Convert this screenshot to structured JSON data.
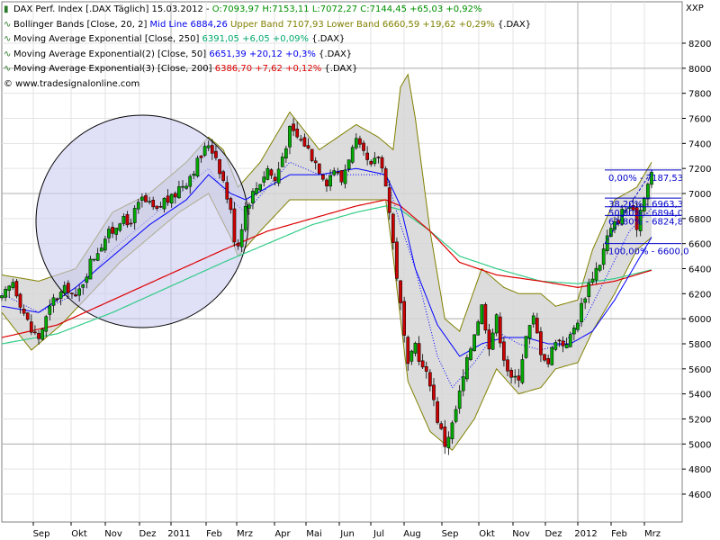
{
  "header": {
    "title": "DAX Perf. Index [.DAX  Täglich] 15.03.2012 -",
    "ohlc": "O:7093,97 H:7153,11 L:7072,27",
    "close": "C:7144,45 +65,03 +0,92%",
    "symbol_code": "XXP"
  },
  "legend": {
    "bollinger_label": "Bollinger Bands [Close, 20, 2]",
    "bollinger_mid": "Mid Line 6884,26",
    "bollinger_bands": "Upper Band 7107,93 Lower Band 6660,59 +19,62 +0,29%",
    "bollinger_suffix": "{.DAX}",
    "ema1_label": "Moving Average Exponential [Close, 250]",
    "ema1_value": "6391,05 +6,05 +0,09%",
    "ema1_suffix": "{.DAX}",
    "ema2_label": "Moving Average Exponential(2) [Close, 50]",
    "ema2_value": "6651,39 +20,12 +0,3%",
    "ema2_suffix": "{.DAX}",
    "ema3_label": "Moving Average Exponential(3) [Close, 200]",
    "ema3_value": "6386,70 +7,62 +0,12%",
    "ema3_suffix": "{.DAX}",
    "copyright": "© www.tradesignalonline.com"
  },
  "colors": {
    "candle_up": "#00aa00",
    "candle_down": "#cc0000",
    "band_fill": "#d6d6d6",
    "band_line": "#808000",
    "mid_line": "#0000ff",
    "ema250": "#33cc88",
    "ema50": "#0000ff",
    "ema200": "#dd0000",
    "circle_fill": "#ccccf2",
    "fib": "#0000cc"
  },
  "chart_data": {
    "type": "candlestick",
    "y_ticks": [
      4600,
      4800,
      5000,
      5200,
      5400,
      5600,
      5800,
      6000,
      6200,
      6400,
      6600,
      6800,
      7000,
      7200,
      7400,
      7600,
      7800,
      8000,
      8200
    ],
    "ylim": [
      4450,
      8400
    ],
    "x_tick_labels": [
      "Sep",
      "Okt",
      "Nov",
      "Dez",
      "2011",
      "Feb",
      "Mrz",
      "Apr",
      "Mai",
      "Jun",
      "Jul",
      "Aug",
      "Sep",
      "Okt",
      "Nov",
      "Dez",
      "2012",
      "Feb",
      "Mrz"
    ],
    "close_path": [
      [
        0,
        6150
      ],
      [
        3,
        6300
      ],
      [
        6,
        6050
      ],
      [
        8,
        5900
      ],
      [
        10,
        5850
      ],
      [
        12,
        6000
      ],
      [
        14,
        6150
      ],
      [
        16,
        6200
      ],
      [
        18,
        6250
      ],
      [
        20,
        6150
      ],
      [
        22,
        6300
      ],
      [
        24,
        6450
      ],
      [
        26,
        6550
      ],
      [
        28,
        6650
      ],
      [
        30,
        6700
      ],
      [
        32,
        6800
      ],
      [
        34,
        6750
      ],
      [
        36,
        6850
      ],
      [
        38,
        6950
      ],
      [
        40,
        6900
      ],
      [
        42,
        6850
      ],
      [
        44,
        6950
      ],
      [
        46,
        6950
      ],
      [
        48,
        7050
      ],
      [
        50,
        7100
      ],
      [
        52,
        7200
      ],
      [
        54,
        7300
      ],
      [
        56,
        7400
      ],
      [
        58,
        7300
      ],
      [
        60,
        7100
      ],
      [
        62,
        6850
      ],
      [
        63,
        6650
      ],
      [
        64,
        6600
      ],
      [
        66,
        6900
      ],
      [
        68,
        7000
      ],
      [
        70,
        7100
      ],
      [
        72,
        7200
      ],
      [
        74,
        7100
      ],
      [
        76,
        7300
      ],
      [
        78,
        7500
      ],
      [
        80,
        7450
      ],
      [
        82,
        7400
      ],
      [
        84,
        7300
      ],
      [
        86,
        7200
      ],
      [
        88,
        7100
      ],
      [
        90,
        7200
      ],
      [
        92,
        7100
      ],
      [
        94,
        7300
      ],
      [
        96,
        7400
      ],
      [
        98,
        7300
      ],
      [
        100,
        7200
      ],
      [
        102,
        7300
      ],
      [
        104,
        7100
      ],
      [
        106,
        6600
      ],
      [
        108,
        6100
      ],
      [
        110,
        5600
      ],
      [
        112,
        5800
      ],
      [
        114,
        5600
      ],
      [
        116,
        5500
      ],
      [
        118,
        5200
      ],
      [
        120,
        5000
      ],
      [
        122,
        5150
      ],
      [
        124,
        5400
      ],
      [
        126,
        5650
      ],
      [
        128,
        5900
      ],
      [
        130,
        6100
      ],
      [
        132,
        5800
      ],
      [
        134,
        6000
      ],
      [
        136,
        5700
      ],
      [
        138,
        5500
      ],
      [
        140,
        5550
      ],
      [
        142,
        5850
      ],
      [
        144,
        6000
      ],
      [
        146,
        5750
      ],
      [
        148,
        5650
      ],
      [
        150,
        5850
      ],
      [
        152,
        5800
      ],
      [
        154,
        5850
      ],
      [
        156,
        6000
      ],
      [
        158,
        6200
      ],
      [
        160,
        6350
      ],
      [
        162,
        6450
      ],
      [
        164,
        6650
      ],
      [
        166,
        6750
      ],
      [
        168,
        6850
      ],
      [
        170,
        6900
      ],
      [
        172,
        6750
      ],
      [
        174,
        7000
      ],
      [
        176,
        7150
      ]
    ],
    "bollinger_upper": [
      [
        0,
        6350
      ],
      [
        10,
        6300
      ],
      [
        20,
        6400
      ],
      [
        30,
        6850
      ],
      [
        40,
        7000
      ],
      [
        50,
        7250
      ],
      [
        56,
        7450
      ],
      [
        60,
        7350
      ],
      [
        64,
        7050
      ],
      [
        70,
        7250
      ],
      [
        78,
        7650
      ],
      [
        86,
        7350
      ],
      [
        96,
        7550
      ],
      [
        102,
        7450
      ],
      [
        106,
        7350
      ],
      [
        108,
        7850
      ],
      [
        110,
        7950
      ],
      [
        112,
        7600
      ],
      [
        116,
        6700
      ],
      [
        120,
        6000
      ],
      [
        124,
        5900
      ],
      [
        130,
        6400
      ],
      [
        136,
        6250
      ],
      [
        140,
        6200
      ],
      [
        146,
        6200
      ],
      [
        150,
        6100
      ],
      [
        156,
        6150
      ],
      [
        160,
        6550
      ],
      [
        166,
        6950
      ],
      [
        172,
        7050
      ],
      [
        176,
        7250
      ]
    ],
    "bollinger_lower": [
      [
        0,
        6050
      ],
      [
        8,
        5750
      ],
      [
        16,
        5950
      ],
      [
        24,
        6200
      ],
      [
        32,
        6450
      ],
      [
        40,
        6650
      ],
      [
        48,
        6850
      ],
      [
        56,
        7000
      ],
      [
        62,
        6650
      ],
      [
        64,
        6500
      ],
      [
        70,
        6700
      ],
      [
        78,
        6950
      ],
      [
        86,
        6950
      ],
      [
        96,
        6950
      ],
      [
        104,
        6950
      ],
      [
        106,
        6500
      ],
      [
        110,
        5500
      ],
      [
        116,
        5100
      ],
      [
        122,
        4950
      ],
      [
        128,
        5200
      ],
      [
        134,
        5600
      ],
      [
        140,
        5400
      ],
      [
        146,
        5450
      ],
      [
        150,
        5600
      ],
      [
        156,
        5650
      ],
      [
        160,
        5900
      ],
      [
        166,
        6200
      ],
      [
        172,
        6550
      ],
      [
        176,
        6650
      ]
    ],
    "bollinger_mid": [
      [
        0,
        6200
      ],
      [
        10,
        6050
      ],
      [
        20,
        6200
      ],
      [
        30,
        6550
      ],
      [
        40,
        6800
      ],
      [
        50,
        7050
      ],
      [
        56,
        7200
      ],
      [
        62,
        6950
      ],
      [
        66,
        6850
      ],
      [
        72,
        7050
      ],
      [
        78,
        7250
      ],
      [
        86,
        7150
      ],
      [
        96,
        7150
      ],
      [
        104,
        7150
      ],
      [
        108,
        6750
      ],
      [
        112,
        6400
      ],
      [
        118,
        5700
      ],
      [
        122,
        5450
      ],
      [
        128,
        5650
      ],
      [
        134,
        5900
      ],
      [
        140,
        5800
      ],
      [
        146,
        5750
      ],
      [
        152,
        5800
      ],
      [
        158,
        6000
      ],
      [
        164,
        6350
      ],
      [
        170,
        6700
      ],
      [
        176,
        6880
      ]
    ],
    "ema50": [
      [
        0,
        6100
      ],
      [
        10,
        6050
      ],
      [
        20,
        6250
      ],
      [
        30,
        6500
      ],
      [
        40,
        6750
      ],
      [
        50,
        6950
      ],
      [
        56,
        7150
      ],
      [
        62,
        7000
      ],
      [
        66,
        6950
      ],
      [
        72,
        7050
      ],
      [
        78,
        7150
      ],
      [
        86,
        7150
      ],
      [
        96,
        7200
      ],
      [
        104,
        7150
      ],
      [
        108,
        6900
      ],
      [
        112,
        6400
      ],
      [
        118,
        5950
      ],
      [
        124,
        5700
      ],
      [
        130,
        5800
      ],
      [
        136,
        5850
      ],
      [
        142,
        5850
      ],
      [
        148,
        5800
      ],
      [
        154,
        5800
      ],
      [
        160,
        5900
      ],
      [
        166,
        6150
      ],
      [
        172,
        6450
      ],
      [
        176,
        6651
      ]
    ],
    "ema200": [
      [
        0,
        5850
      ],
      [
        15,
        5950
      ],
      [
        30,
        6150
      ],
      [
        45,
        6350
      ],
      [
        60,
        6550
      ],
      [
        72,
        6700
      ],
      [
        84,
        6800
      ],
      [
        96,
        6900
      ],
      [
        104,
        6950
      ],
      [
        108,
        6900
      ],
      [
        116,
        6700
      ],
      [
        124,
        6450
      ],
      [
        134,
        6350
      ],
      [
        146,
        6300
      ],
      [
        156,
        6250
      ],
      [
        166,
        6300
      ],
      [
        176,
        6387
      ]
    ],
    "ema250": [
      [
        0,
        5800
      ],
      [
        15,
        5880
      ],
      [
        30,
        6050
      ],
      [
        45,
        6250
      ],
      [
        60,
        6450
      ],
      [
        72,
        6600
      ],
      [
        84,
        6750
      ],
      [
        96,
        6850
      ],
      [
        104,
        6900
      ],
      [
        108,
        6870
      ],
      [
        116,
        6700
      ],
      [
        124,
        6500
      ],
      [
        134,
        6400
      ],
      [
        146,
        6300
      ],
      [
        156,
        6280
      ],
      [
        166,
        6320
      ],
      [
        176,
        6391
      ]
    ],
    "fibonacci": [
      {
        "label": "0,00% - 7187,53",
        "value": 7187.53
      },
      {
        "label": "38,20% - 6963,3",
        "value": 6963.3
      },
      {
        "label": "50,00% - 6894,0",
        "value": 6894.0
      },
      {
        "label": "61,80% - 6824,8",
        "value": 6824.8
      },
      {
        "label": "100,00% - 6600,0",
        "value": 6600.0
      }
    ]
  }
}
